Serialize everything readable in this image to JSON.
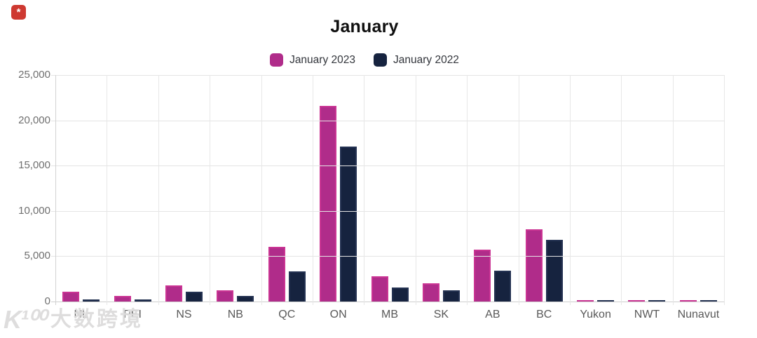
{
  "page": {
    "title": "January"
  },
  "chart_data": {
    "type": "bar",
    "title": "January",
    "categories": [
      "NL",
      "PEI",
      "NS",
      "NB",
      "QC",
      "ON",
      "MB",
      "SK",
      "AB",
      "BC",
      "Yukon",
      "NWT",
      "Nunavut"
    ],
    "series": [
      {
        "name": "January 2023",
        "color": "#b02c8a",
        "border_color": "#ca3493",
        "values": [
          1100,
          650,
          1750,
          1250,
          6000,
          21600,
          2800,
          2000,
          5700,
          8000,
          120,
          60,
          30
        ]
      },
      {
        "name": "January 2022",
        "color": "#16233f",
        "border_color": "#243252",
        "values": [
          250,
          230,
          1100,
          650,
          3300,
          17100,
          1550,
          1200,
          3400,
          6800,
          100,
          80,
          100
        ]
      }
    ],
    "xlabel": "",
    "ylabel": "",
    "ylim": [
      0,
      25000
    ],
    "ytick_interval": 5000,
    "ytick_labels": [
      "0",
      "5,000",
      "10,000",
      "15,000",
      "20,000",
      "25,000"
    ],
    "grid": true,
    "legend_position": "top-center"
  },
  "watermark": {
    "logo": "K¹⁰⁰",
    "text": "大数跨境"
  },
  "icons": {
    "corner_badge_glyph": "*"
  }
}
